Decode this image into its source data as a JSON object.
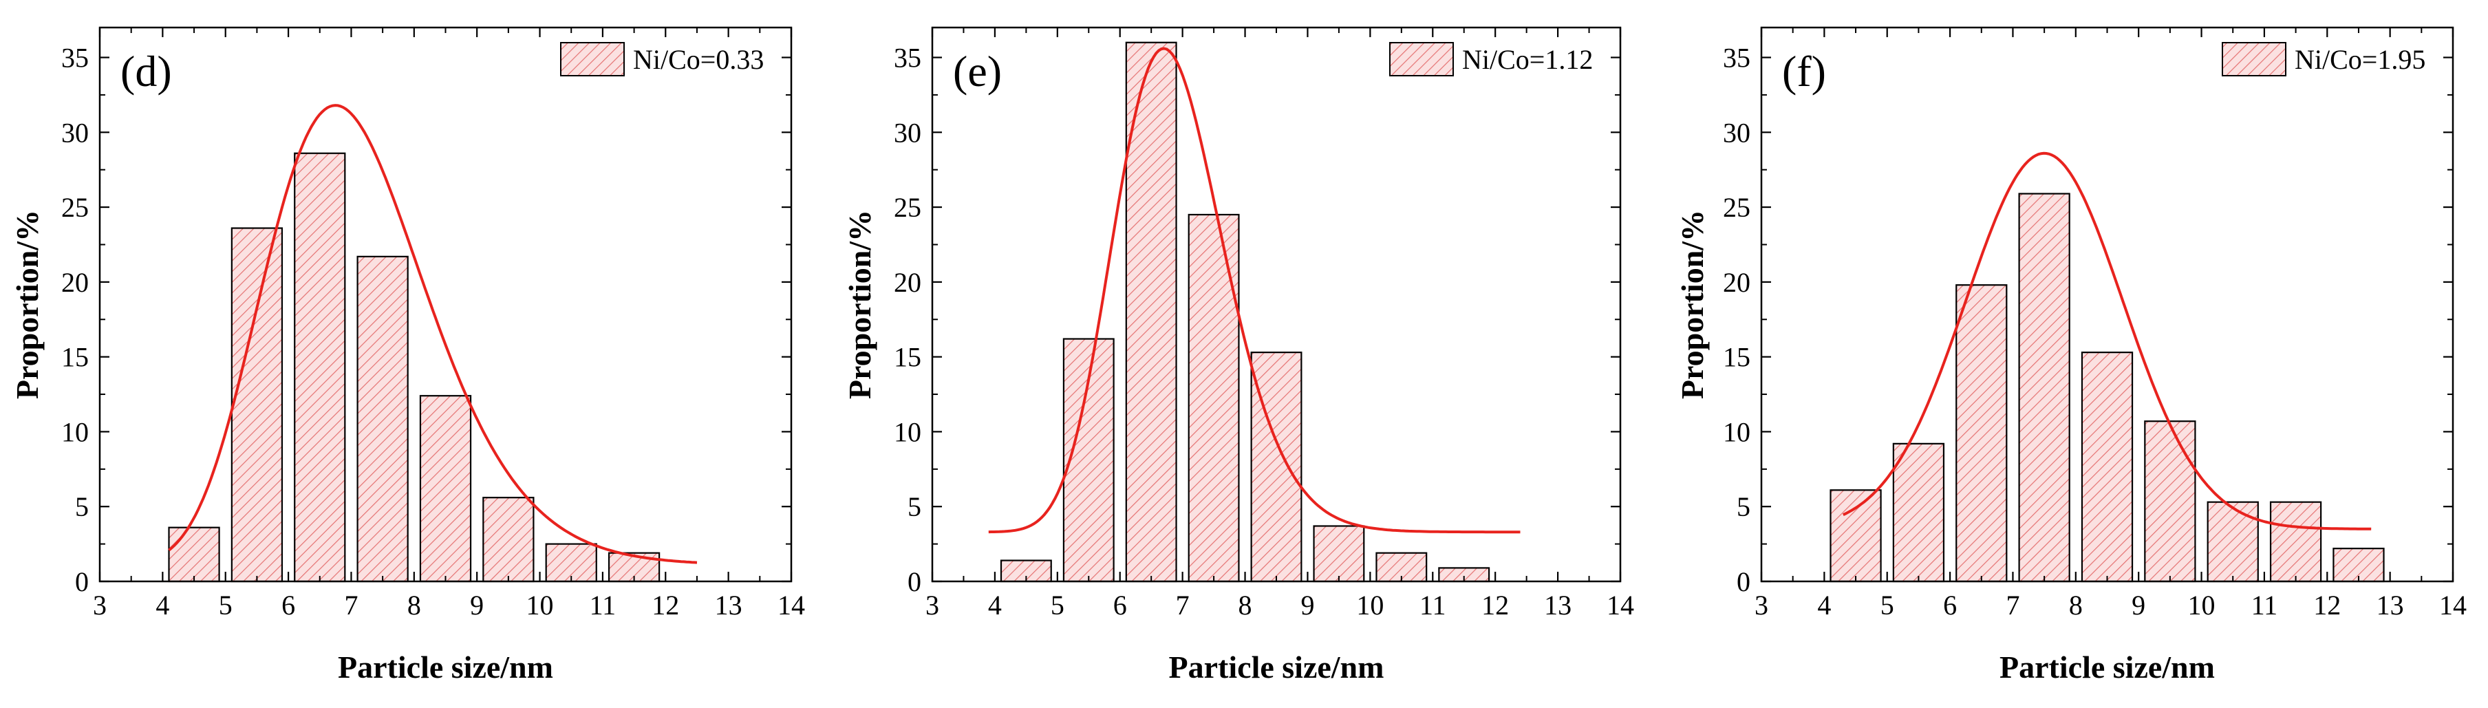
{
  "chart_data": [
    {
      "type": "bar",
      "panel_label": "(d)",
      "legend_label": "Ni/Co=0.33",
      "xlabel": "Particle size/nm",
      "ylabel": "Proportion/%",
      "xlim": [
        3,
        14
      ],
      "ylim": [
        0,
        37
      ],
      "xticks": [
        3,
        4,
        5,
        6,
        7,
        8,
        9,
        10,
        11,
        12,
        13,
        14
      ],
      "yticks": [
        0,
        5,
        10,
        15,
        20,
        25,
        30,
        35
      ],
      "bin_width": 0.8,
      "bar_centers": [
        4.5,
        5.5,
        6.5,
        7.5,
        8.5,
        9.5,
        10.5,
        11.5
      ],
      "values": [
        3.6,
        23.6,
        28.6,
        21.7,
        12.4,
        5.6,
        2.5,
        1.9
      ],
      "fit": {
        "type": "lognormal",
        "peak": 6.75,
        "amplitude": 30.7,
        "log_sigma": 0.19,
        "offset": 1.1,
        "x_range": [
          4.1,
          12.5
        ]
      },
      "colors": {
        "bar_fill": "#fbe1e1",
        "hatch": "#e57373",
        "bar_edge": "#000000",
        "fit_line": "#e8231e"
      }
    },
    {
      "type": "bar",
      "panel_label": "(e)",
      "legend_label": "Ni/Co=1.12",
      "xlabel": "Particle size/nm",
      "ylabel": "Proportion/%",
      "xlim": [
        3,
        14
      ],
      "ylim": [
        0,
        37
      ],
      "xticks": [
        3,
        4,
        5,
        6,
        7,
        8,
        9,
        10,
        11,
        12,
        13,
        14
      ],
      "yticks": [
        0,
        5,
        10,
        15,
        20,
        25,
        30,
        35
      ],
      "bin_width": 0.8,
      "bar_centers": [
        4.5,
        5.5,
        6.5,
        7.5,
        8.5,
        9.5,
        10.5,
        11.5
      ],
      "values": [
        1.4,
        16.2,
        36.0,
        24.5,
        15.3,
        3.7,
        1.9,
        0.9
      ],
      "fit": {
        "type": "lognormal",
        "peak": 6.7,
        "amplitude": 32.3,
        "log_sigma": 0.13,
        "offset": 3.3,
        "x_range": [
          3.9,
          12.4
        ]
      },
      "colors": {
        "bar_fill": "#fbe1e1",
        "hatch": "#e57373",
        "bar_edge": "#000000",
        "fit_line": "#e8231e"
      }
    },
    {
      "type": "bar",
      "panel_label": "(f)",
      "legend_label": "Ni/Co=1.95",
      "xlabel": "Particle size/nm",
      "ylabel": "Proportion/%",
      "xlim": [
        3,
        14
      ],
      "ylim": [
        0,
        37
      ],
      "xticks": [
        3,
        4,
        5,
        6,
        7,
        8,
        9,
        10,
        11,
        12,
        13,
        14
      ],
      "yticks": [
        0,
        5,
        10,
        15,
        20,
        25,
        30,
        35
      ],
      "bin_width": 0.8,
      "bar_centers": [
        4.5,
        5.5,
        6.5,
        7.5,
        8.5,
        9.5,
        10.5,
        11.5,
        12.5
      ],
      "values": [
        6.1,
        9.2,
        19.8,
        25.9,
        15.3,
        10.7,
        5.3,
        5.3,
        2.2
      ],
      "fit": {
        "type": "gaussian",
        "peak": 7.5,
        "amplitude": 25.1,
        "sigma": 1.25,
        "offset": 3.5,
        "x_range": [
          4.3,
          12.7
        ]
      },
      "colors": {
        "bar_fill": "#fbe1e1",
        "hatch": "#e57373",
        "bar_edge": "#000000",
        "fit_line": "#e8231e"
      }
    }
  ]
}
